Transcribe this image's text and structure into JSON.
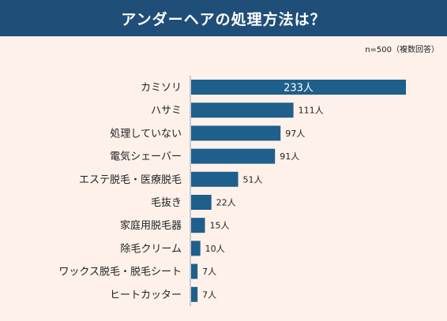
{
  "title": "アンダーヘアの処理方法は？",
  "note": "n=500（複数回答）",
  "colors": {
    "title_bg": "#1f4e79",
    "bar": "#1f5f8b",
    "background": "#fdf1ea"
  },
  "chart_data": {
    "type": "bar",
    "orientation": "horizontal",
    "categories": [
      "カミソリ",
      "ハサミ",
      "処理していない",
      "電気シェーバー",
      "エステ脱毛・医療脱毛",
      "毛抜き",
      "家庭用脱毛器",
      "除毛クリーム",
      "ワックス脱毛・脱毛シート",
      "ヒートカッター"
    ],
    "values": [
      233,
      111,
      97,
      91,
      51,
      22,
      15,
      10,
      7,
      7
    ],
    "value_labels": [
      "233人",
      "111人",
      "97人",
      "91人",
      "51人",
      "22人",
      "15人",
      "10人",
      "7人",
      "7人"
    ],
    "unit": "人",
    "xlim": [
      0,
      233
    ],
    "grid": false,
    "legend": "none"
  }
}
